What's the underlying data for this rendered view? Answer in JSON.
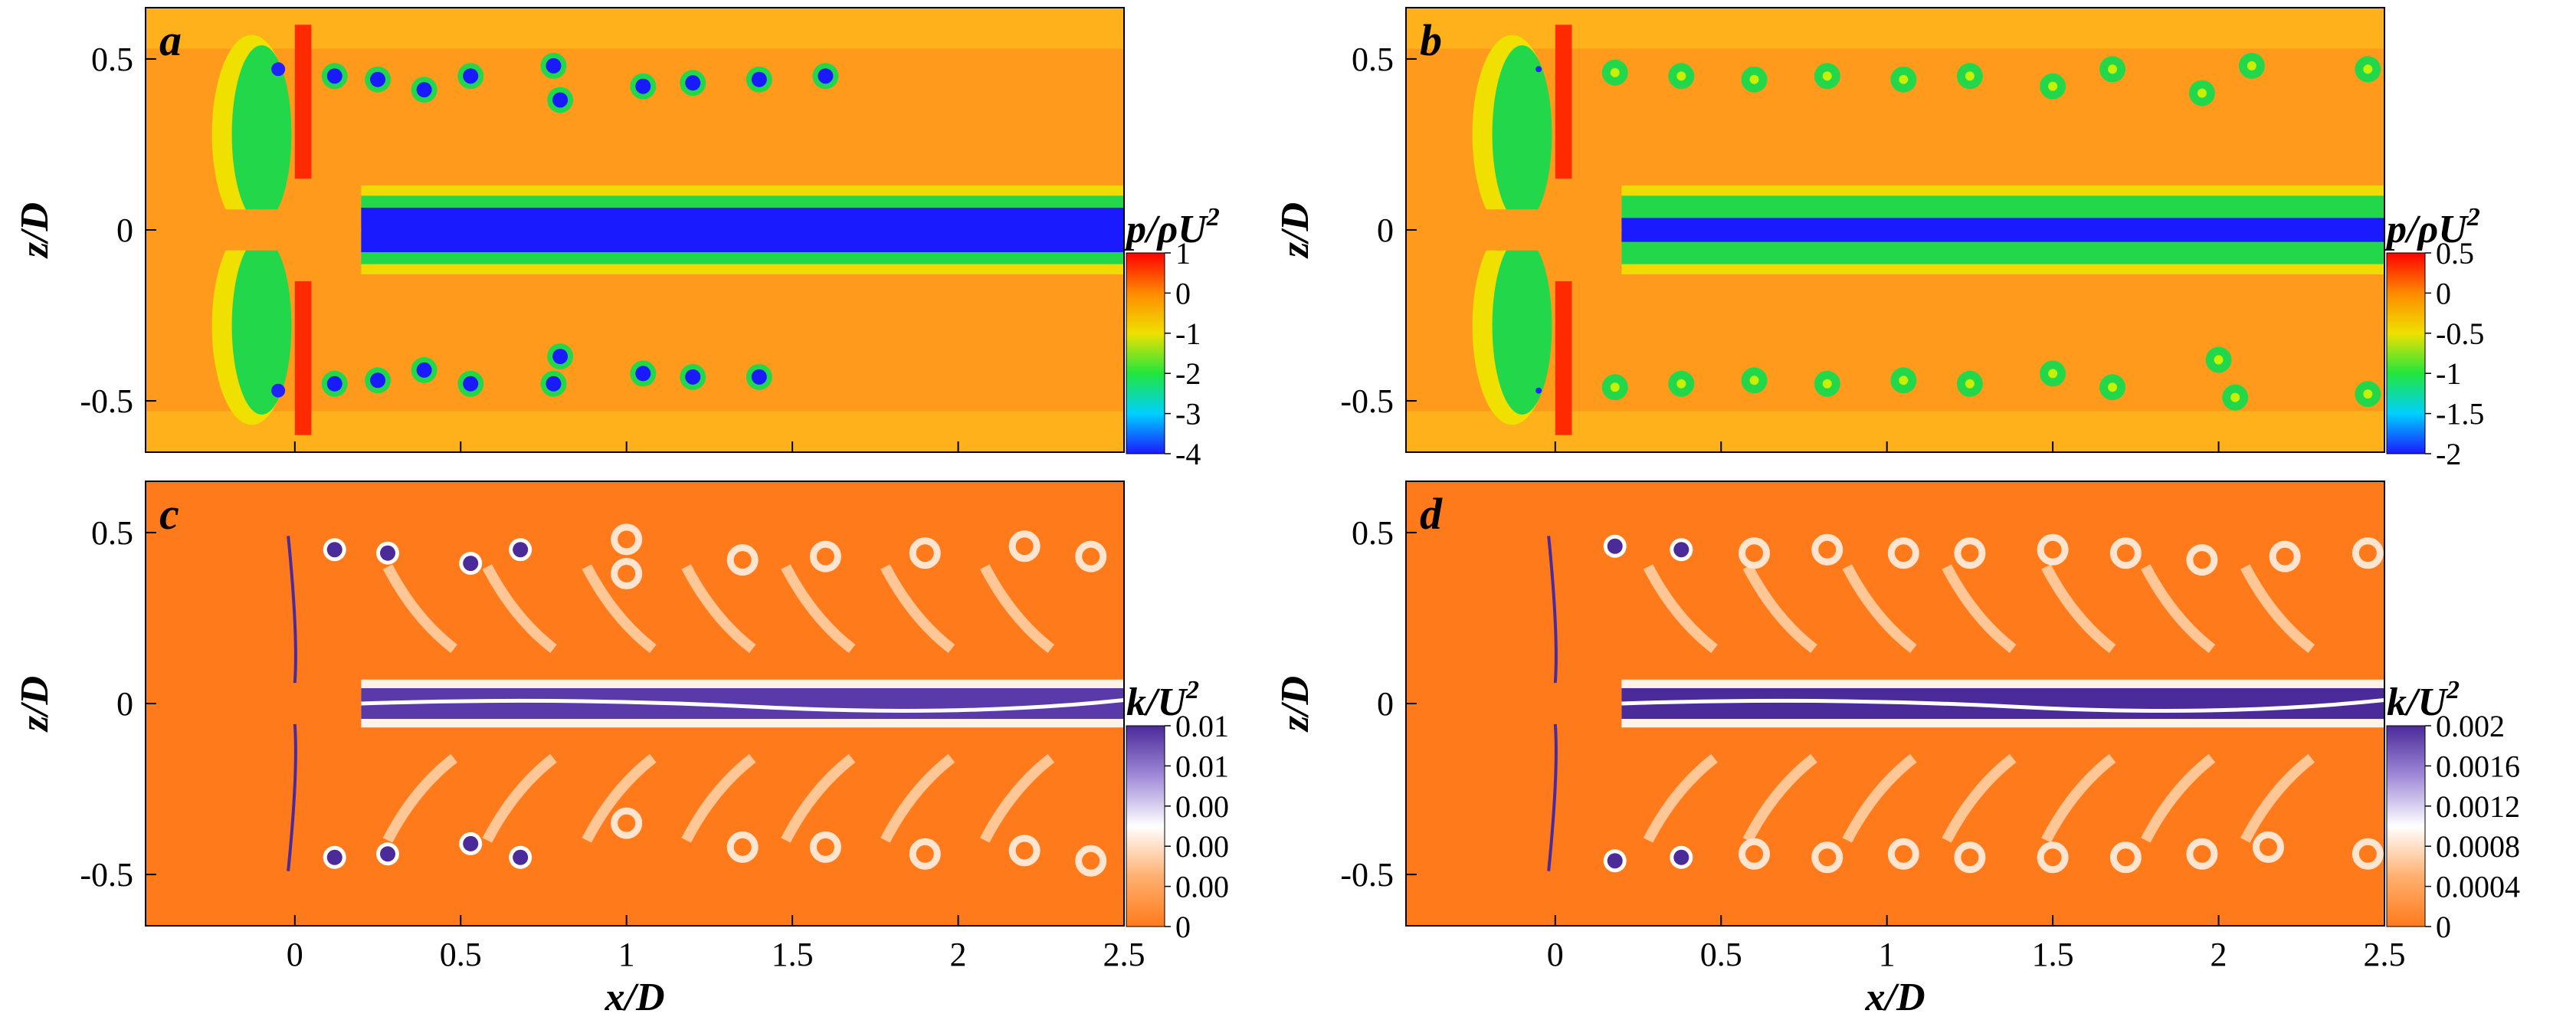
{
  "chart_data": [
    {
      "panel": "a",
      "type": "heatmap",
      "quantity": "pressure coefficient",
      "xlabel": "",
      "ylabel": "z/D",
      "xlim": [
        -0.45,
        2.5
      ],
      "ylim": [
        -0.65,
        0.65
      ],
      "yticks": [
        "0.5",
        "0",
        "-0.5"
      ],
      "colorbar": {
        "title_main": "p/ρU",
        "title_sup": "2",
        "ticks": [
          "1",
          "0",
          "-1",
          "-2",
          "-3",
          "-4"
        ],
        "range": [
          -4,
          1
        ]
      },
      "colormap": [
        "#1a1aff",
        "#00d0ff",
        "#22e63c",
        "#f0e000",
        "#ff8a00",
        "#ff0000"
      ],
      "background": "#ff9a1c",
      "hub_color": "#ff9a1c",
      "wake_color": "#1a1aff",
      "blade_tip_color": "#2222ff",
      "tip_vortices": [
        [
          0.12,
          0.45
        ],
        [
          0.25,
          0.44
        ],
        [
          0.39,
          0.41
        ],
        [
          0.53,
          0.45
        ],
        [
          0.78,
          0.48
        ],
        [
          0.8,
          0.38
        ],
        [
          1.05,
          0.42
        ],
        [
          1.2,
          0.43
        ],
        [
          1.4,
          0.44
        ],
        [
          1.6,
          0.45
        ],
        [
          0.12,
          -0.45
        ],
        [
          0.25,
          -0.44
        ],
        [
          0.39,
          -0.41
        ],
        [
          0.53,
          -0.45
        ],
        [
          0.78,
          -0.45
        ],
        [
          0.8,
          -0.37
        ],
        [
          1.05,
          -0.42
        ],
        [
          1.2,
          -0.43
        ],
        [
          1.4,
          -0.43
        ]
      ]
    },
    {
      "panel": "b",
      "type": "heatmap",
      "quantity": "pressure coefficient",
      "xlabel": "",
      "ylabel": "z/D",
      "xlim": [
        -0.45,
        2.5
      ],
      "ylim": [
        -0.65,
        0.65
      ],
      "yticks": [
        "0.5",
        "0",
        "-0.5"
      ],
      "colorbar": {
        "title_main": "p/ρU",
        "title_sup": "2",
        "ticks": [
          "0.5",
          "0",
          "-0.5",
          "-1",
          "-1.5",
          "-2"
        ],
        "range": [
          -2,
          0.5
        ]
      },
      "colormap": [
        "#1a1aff",
        "#00d0ff",
        "#22e63c",
        "#f0e000",
        "#ff8a00",
        "#ff0000"
      ],
      "background": "#ff9a1c",
      "hub_color": "#ff9a1c",
      "wake_color": "#1a1aff",
      "blade_tip_color": "#2222ff",
      "tip_vortices": [
        [
          0.18,
          0.46
        ],
        [
          0.38,
          0.45
        ],
        [
          0.6,
          0.44
        ],
        [
          0.82,
          0.45
        ],
        [
          1.05,
          0.44
        ],
        [
          1.25,
          0.45
        ],
        [
          1.5,
          0.42
        ],
        [
          1.68,
          0.47
        ],
        [
          1.95,
          0.4
        ],
        [
          2.1,
          0.48
        ],
        [
          2.45,
          0.47
        ],
        [
          0.18,
          -0.46
        ],
        [
          0.38,
          -0.45
        ],
        [
          0.6,
          -0.44
        ],
        [
          0.82,
          -0.45
        ],
        [
          1.05,
          -0.44
        ],
        [
          1.25,
          -0.45
        ],
        [
          1.5,
          -0.42
        ],
        [
          1.68,
          -0.46
        ],
        [
          2.0,
          -0.38
        ],
        [
          2.05,
          -0.49
        ],
        [
          2.45,
          -0.48
        ]
      ]
    },
    {
      "panel": "c",
      "type": "heatmap",
      "quantity": "turbulent kinetic energy",
      "xlabel": "x/D",
      "ylabel": "z/D",
      "xlim": [
        -0.45,
        2.5
      ],
      "ylim": [
        -0.65,
        0.65
      ],
      "xticks": [
        "0",
        "0.5",
        "1",
        "1.5",
        "2",
        "2.5"
      ],
      "yticks": [
        "0.5",
        "0",
        "-0.5"
      ],
      "colorbar": {
        "title_main": "k/U",
        "title_sup": "2",
        "ticks": [
          "0.01",
          "0.01",
          "0.00",
          "0.00",
          "0.00",
          "0"
        ],
        "range": [
          0,
          0.01
        ]
      },
      "colormap": [
        "#ff7a1a",
        "#ffb070",
        "#ffffff",
        "#a08ad8",
        "#4b2a9a"
      ],
      "background": "#ff7a1a",
      "hub_color": "#ff7a1a",
      "wake_color": "#5a3aa8",
      "blade_tip_color": "#4b2a9a",
      "tip_vortices": [
        [
          0.12,
          0.45
        ],
        [
          0.28,
          0.44
        ],
        [
          0.53,
          0.41
        ],
        [
          0.68,
          0.45
        ],
        [
          0.12,
          -0.45
        ],
        [
          0.28,
          -0.44
        ],
        [
          0.53,
          -0.41
        ],
        [
          0.68,
          -0.45
        ]
      ],
      "wake_blobs": [
        [
          1.0,
          0.48
        ],
        [
          1.0,
          0.38
        ],
        [
          1.35,
          0.42
        ],
        [
          1.6,
          0.43
        ],
        [
          1.9,
          0.44
        ],
        [
          2.2,
          0.46
        ],
        [
          2.4,
          0.43
        ],
        [
          1.0,
          -0.35
        ],
        [
          1.35,
          -0.42
        ],
        [
          1.6,
          -0.42
        ],
        [
          1.9,
          -0.44
        ],
        [
          2.2,
          -0.43
        ],
        [
          2.4,
          -0.46
        ]
      ]
    },
    {
      "panel": "d",
      "type": "heatmap",
      "quantity": "turbulent kinetic energy",
      "xlabel": "x/D",
      "ylabel": "z/D",
      "xlim": [
        -0.45,
        2.5
      ],
      "ylim": [
        -0.65,
        0.65
      ],
      "xticks": [
        "0",
        "0.5",
        "1",
        "1.5",
        "2",
        "2.5"
      ],
      "yticks": [
        "0.5",
        "0",
        "-0.5"
      ],
      "colorbar": {
        "title_main": "k/U",
        "title_sup": "2",
        "ticks": [
          "0.002",
          "0.0016",
          "0.0012",
          "0.0008",
          "0.0004",
          "0"
        ],
        "range": [
          0,
          0.002
        ]
      },
      "colormap": [
        "#ff7a1a",
        "#ffb070",
        "#ffffff",
        "#a08ad8",
        "#4b2a9a"
      ],
      "background": "#ff7a1a",
      "hub_color": "#ff7a1a",
      "wake_color": "#4b2a9a",
      "blade_tip_color": "#4b2a9a",
      "tip_vortices": [
        [
          0.18,
          0.46
        ],
        [
          0.38,
          0.45
        ],
        [
          0.18,
          -0.46
        ],
        [
          0.38,
          -0.45
        ]
      ],
      "wake_blobs": [
        [
          0.6,
          0.44
        ],
        [
          0.82,
          0.45
        ],
        [
          1.05,
          0.44
        ],
        [
          1.25,
          0.44
        ],
        [
          1.5,
          0.45
        ],
        [
          1.72,
          0.44
        ],
        [
          1.95,
          0.42
        ],
        [
          2.2,
          0.43
        ],
        [
          2.45,
          0.44
        ],
        [
          0.6,
          -0.44
        ],
        [
          0.82,
          -0.45
        ],
        [
          1.05,
          -0.44
        ],
        [
          1.25,
          -0.45
        ],
        [
          1.5,
          -0.45
        ],
        [
          1.72,
          -0.45
        ],
        [
          1.95,
          -0.44
        ],
        [
          2.15,
          -0.42
        ],
        [
          2.45,
          -0.44
        ]
      ]
    }
  ]
}
